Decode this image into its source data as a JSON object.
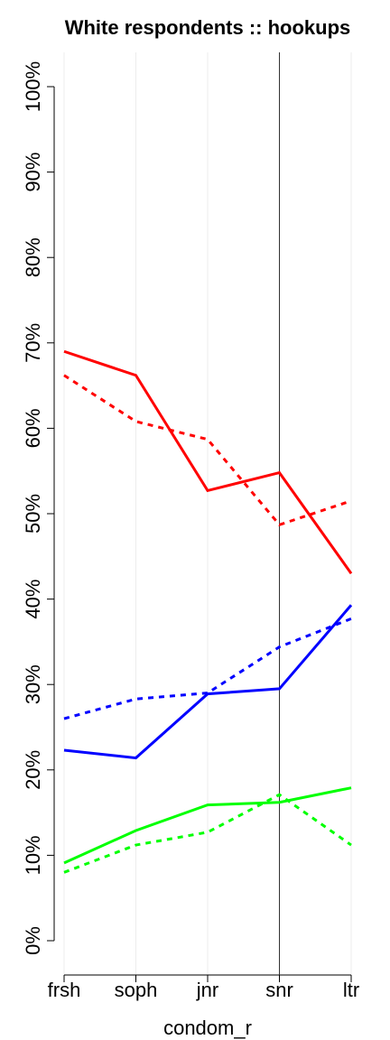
{
  "chart_data": {
    "type": "line",
    "title": "White respondents :: hookups",
    "x_label": "condom_r",
    "categories": [
      "frsh",
      "soph",
      "jnr",
      "snr",
      "ltr"
    ],
    "series": [
      {
        "color": "#ff0000",
        "dashed": false,
        "values": [
          69.0,
          66.2,
          52.7,
          54.8,
          43.0
        ]
      },
      {
        "color": "#ff0000",
        "dashed": true,
        "values": [
          66.2,
          60.8,
          58.7,
          48.7,
          51.5
        ]
      },
      {
        "color": "#0000ff",
        "dashed": false,
        "values": [
          22.3,
          21.4,
          28.9,
          29.5,
          39.3
        ]
      },
      {
        "color": "#0000ff",
        "dashed": true,
        "values": [
          26.0,
          28.3,
          29.0,
          34.4,
          37.7
        ]
      },
      {
        "color": "#00ff00",
        "dashed": false,
        "values": [
          9.1,
          12.9,
          15.9,
          16.2,
          17.9
        ]
      },
      {
        "color": "#00ff00",
        "dashed": true,
        "values": [
          8.0,
          11.2,
          12.7,
          17.1,
          11.2
        ]
      }
    ],
    "ylim": [
      0,
      100
    ],
    "yticks": [
      {
        "value": 0,
        "label": "0%"
      },
      {
        "value": 10,
        "label": "10%"
      },
      {
        "value": 20,
        "label": "20%"
      },
      {
        "value": 30,
        "label": "30%"
      },
      {
        "value": 40,
        "label": "40%"
      },
      {
        "value": 50,
        "label": "50%"
      },
      {
        "value": 60,
        "label": "60%"
      },
      {
        "value": 70,
        "label": "70%"
      },
      {
        "value": 80,
        "label": "80%"
      },
      {
        "value": 90,
        "label": "90%"
      },
      {
        "value": 100,
        "label": "100%"
      }
    ],
    "grid": true,
    "vline": "snr"
  }
}
